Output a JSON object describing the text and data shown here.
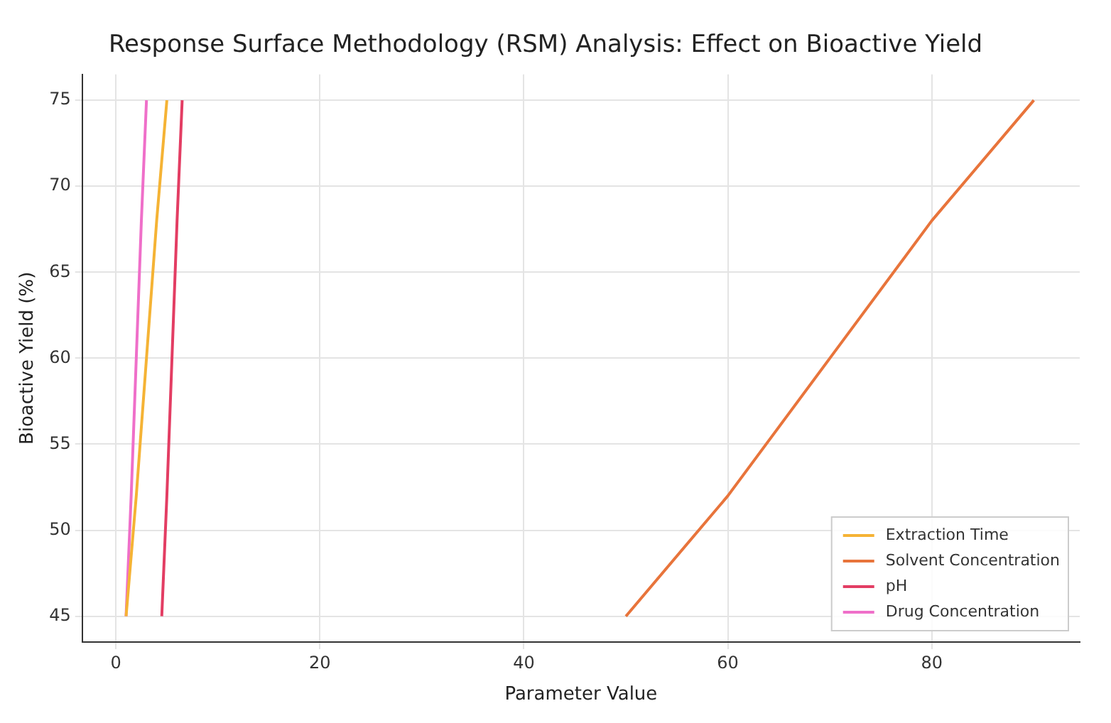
{
  "chart_data": {
    "type": "line",
    "title": "Response Surface Methodology (RSM) Analysis: Effect on Bioactive Yield",
    "xlabel": "Parameter Value",
    "ylabel": "Bioactive Yield (%)",
    "series": [
      {
        "name": "Extraction Time",
        "color": "#f5b335",
        "x": [
          1,
          2,
          3,
          4,
          5
        ],
        "values": [
          45,
          52,
          60,
          68,
          75
        ]
      },
      {
        "name": "Solvent Concentration",
        "color": "#e8743b",
        "x": [
          50,
          60,
          70,
          80,
          90
        ],
        "values": [
          45,
          52,
          60,
          68,
          75
        ]
      },
      {
        "name": "pH",
        "color": "#e33d63",
        "x": [
          4.5,
          5,
          5.5,
          6,
          6.5
        ],
        "values": [
          45,
          52,
          60,
          68,
          75
        ]
      },
      {
        "name": "Drug Concentration",
        "color": "#ef6fc9",
        "x": [
          1,
          1.5,
          2,
          2.5,
          3
        ],
        "values": [
          45,
          52,
          60,
          68,
          75
        ]
      }
    ],
    "xlim": [
      -3.3,
      94.5
    ],
    "xticks": [
      0,
      20,
      40,
      60,
      80
    ],
    "ylim": [
      43.5,
      76.5
    ],
    "yticks": [
      45,
      50,
      55,
      60,
      65,
      70,
      75
    ],
    "grid": true,
    "legend": "bottom right",
    "marker": "none",
    "line_style": "solid"
  }
}
